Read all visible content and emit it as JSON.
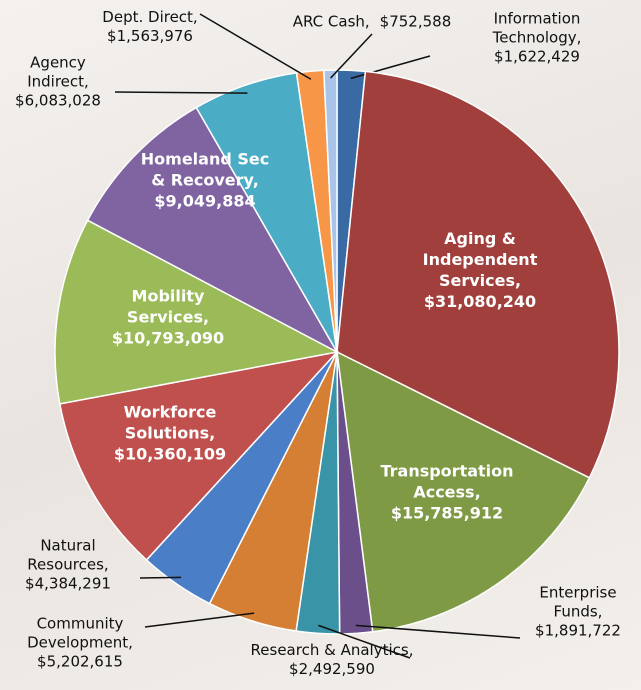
{
  "chart_data": {
    "type": "pie",
    "categories": [
      "Information\nTechnology,",
      "Aging &\nIndependent\nServices,",
      "Transportation\nAccess,",
      "Enterprise\nFunds,",
      "Research & Analytics,",
      "Community\nDevelopment,",
      "Natural\nResources,",
      "Workforce\nSolutions,",
      "Mobility\nServices,",
      "Homeland Sec\n& Recovery,",
      "Agency\nIndirect,",
      "Dept. Direct,",
      "ARC Cash,"
    ],
    "values": [
      1622429,
      31080240,
      15785912,
      1891722,
      2492590,
      5202615,
      4384291,
      10360109,
      10793090,
      9049884,
      6083028,
      1563976,
      752588
    ],
    "value_labels": [
      "$1,622,429",
      "$31,080,240",
      "$15,785,912",
      "$1,891,722",
      "$2,492,590",
      "$5,202,615",
      "$4,384,291",
      "$10,360,109",
      "$10,793,090",
      "$9,049,884",
      "$6,083,028",
      "$1,563,976",
      "$752,588"
    ],
    "colors": [
      "#3a6aa3",
      "#a03f3c",
      "#7f9a44",
      "#6a4f8a",
      "#3a94a8",
      "#d47f33",
      "#4a7fc8",
      "#c0504d",
      "#9bbb59",
      "#8064a2",
      "#4bacc6",
      "#f79646",
      "#a9c4e8"
    ]
  }
}
